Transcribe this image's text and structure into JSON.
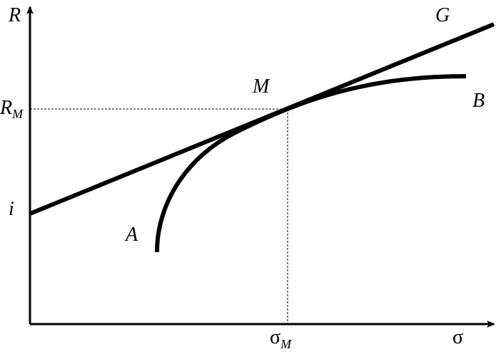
{
  "axes": {
    "y": "R",
    "x": "σ"
  },
  "labels": {
    "r_m": {
      "base": "R",
      "sub": "M"
    },
    "sigma_m": {
      "base": "σ",
      "sub": "M"
    },
    "intercept": "i",
    "point_a": "A",
    "point_m": "M",
    "point_b": "B",
    "line_g": "G"
  }
}
